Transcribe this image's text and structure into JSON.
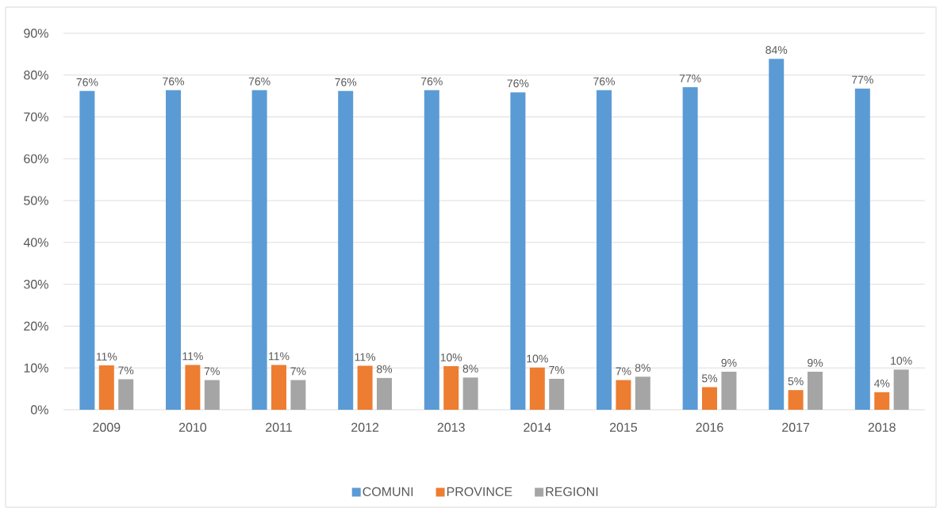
{
  "chart_data": {
    "type": "bar",
    "categories": [
      "2009",
      "2010",
      "2011",
      "2012",
      "2013",
      "2014",
      "2015",
      "2016",
      "2017",
      "2018"
    ],
    "series": [
      {
        "name": "COMUNI",
        "color": "#5b9bd5",
        "values": [
          76.2,
          76.4,
          76.4,
          76.2,
          76.4,
          75.9,
          76.4,
          77.1,
          83.9,
          76.8
        ],
        "value_labels": [
          "76%",
          "76%",
          "76%",
          "76%",
          "76%",
          "76%",
          "76%",
          "77%",
          "84%",
          "77%"
        ]
      },
      {
        "name": "PROVINCE",
        "color": "#ed7d31",
        "values": [
          10.6,
          10.7,
          10.7,
          10.5,
          10.4,
          10.1,
          7.1,
          5.4,
          4.7,
          4.2
        ],
        "value_labels": [
          "11%",
          "11%",
          "11%",
          "11%",
          "10%",
          "10%",
          "7%",
          "5%",
          "5%",
          "4%"
        ]
      },
      {
        "name": "REGIONI",
        "color": "#a5a5a5",
        "values": [
          7.3,
          7.1,
          7.1,
          7.6,
          7.7,
          7.4,
          7.9,
          9.1,
          9.1,
          9.6
        ],
        "value_labels": [
          "7%",
          "7%",
          "7%",
          "8%",
          "8%",
          "7%",
          "8%",
          "9%",
          "9%",
          "10%"
        ]
      }
    ],
    "ylim": [
      0,
      90
    ],
    "yticks": [
      {
        "value": 0,
        "label": "0%"
      },
      {
        "value": 10,
        "label": "10%"
      },
      {
        "value": 20,
        "label": "20%"
      },
      {
        "value": 30,
        "label": "30%"
      },
      {
        "value": 40,
        "label": "40%"
      },
      {
        "value": 50,
        "label": "50%"
      },
      {
        "value": 60,
        "label": "60%"
      },
      {
        "value": 70,
        "label": "70%"
      },
      {
        "value": 80,
        "label": "80%"
      },
      {
        "value": 90,
        "label": "90%"
      }
    ],
    "grid": "y",
    "legend": "bottom"
  }
}
